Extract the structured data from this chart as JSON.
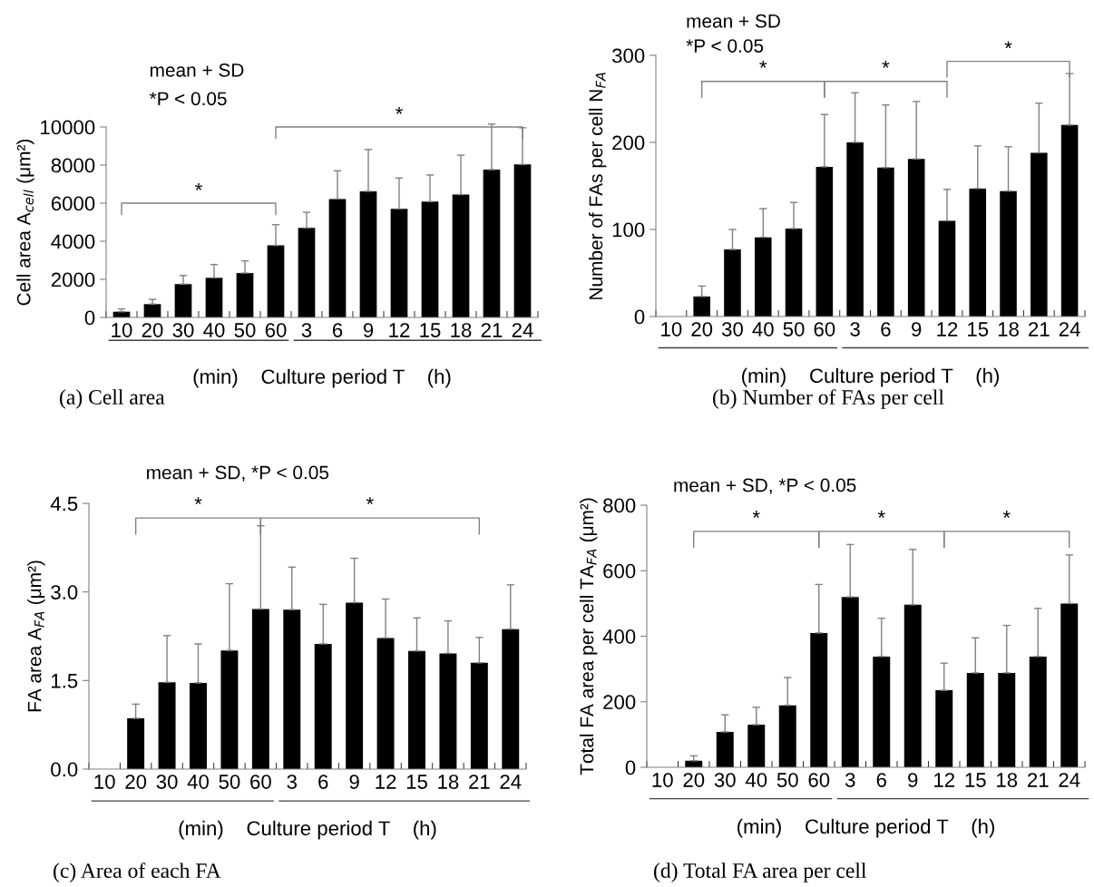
{
  "chart_data": [
    {
      "type": "bar",
      "title": "(a) Cell area",
      "xlabel": "(min)    Culture period T    (h)",
      "ylabel": "Cell area A$_{cell}$ (μm²)",
      "color": "#000000",
      "categories": [
        "10",
        "20",
        "30",
        "40",
        "50",
        "60",
        "3",
        "6",
        "9",
        "12",
        "15",
        "18",
        "21",
        "24"
      ],
      "values": [
        300,
        700,
        1750,
        2080,
        2330,
        3780,
        4700,
        6220,
        6620,
        5700,
        6080,
        6450,
        7760,
        8030
      ],
      "errors": [
        [
          300,
          450
        ],
        [
          700,
          950
        ],
        [
          1750,
          2200
        ],
        [
          2080,
          2780
        ],
        [
          2330,
          2970
        ],
        [
          3780,
          4870
        ],
        [
          4700,
          5520
        ],
        [
          6220,
          7700
        ],
        [
          6620,
          8820
        ],
        [
          5700,
          7320
        ],
        [
          6080,
          7480
        ],
        [
          6450,
          8520
        ],
        [
          7760,
          10150
        ],
        [
          8030,
          9960
        ]
      ],
      "ylim": [
        0,
        10000
      ],
      "yticks": [
        0,
        2000,
        4000,
        6000,
        8000,
        10000
      ],
      "annotations": [
        "mean + SD",
        "*P < 0.05",
        "*",
        "*"
      ]
    },
    {
      "type": "bar",
      "title": "(b) Number of FAs per cell",
      "xlabel": "(min)    Culture period T    (h)",
      "ylabel": "Number of FAs per cell N$_{FA}$",
      "color": "#000000",
      "categories": [
        "10",
        "20",
        "30",
        "40",
        "50",
        "60",
        "3",
        "6",
        "9",
        "12",
        "15",
        "18",
        "21",
        "24"
      ],
      "values": [
        null,
        23,
        77,
        91,
        101,
        172,
        200,
        171,
        181,
        110,
        147,
        144,
        188,
        220
      ],
      "errors": [
        null,
        [
          23,
          35
        ],
        [
          77,
          100
        ],
        [
          91,
          124
        ],
        [
          101,
          131
        ],
        [
          172,
          232
        ],
        [
          200,
          257
        ],
        [
          171,
          243
        ],
        [
          181,
          247
        ],
        [
          110,
          146
        ],
        [
          147,
          196
        ],
        [
          144,
          195
        ],
        [
          188,
          245
        ],
        [
          220,
          279
        ]
      ],
      "ylim": [
        0,
        300
      ],
      "yticks": [
        0,
        100,
        200,
        300
      ],
      "annotations": [
        "mean + SD",
        "*P < 0.05",
        "*",
        "*",
        "*"
      ]
    },
    {
      "type": "bar",
      "title": "(c) Area of each FA",
      "xlabel": "(min)    Culture period T    (h)",
      "ylabel": "FA area A$_{FA}$ (μm²)",
      "color": "#000000",
      "categories": [
        "10",
        "20",
        "30",
        "40",
        "50",
        "60",
        "3",
        "6",
        "9",
        "12",
        "15",
        "18",
        "21",
        "24"
      ],
      "values": [
        null,
        0.86,
        1.47,
        1.46,
        2.01,
        2.71,
        2.7,
        2.12,
        2.82,
        2.22,
        2.0,
        1.96,
        1.8,
        2.37
      ],
      "errors": [
        null,
        [
          0.86,
          1.1
        ],
        [
          1.47,
          2.26
        ],
        [
          1.46,
          2.12
        ],
        [
          2.01,
          3.14
        ],
        [
          2.71,
          4.12
        ],
        [
          2.7,
          3.42
        ],
        [
          2.12,
          2.79
        ],
        [
          2.82,
          3.57
        ],
        [
          2.22,
          2.88
        ],
        [
          2.0,
          2.56
        ],
        [
          1.96,
          2.51
        ],
        [
          1.8,
          2.23
        ],
        [
          2.37,
          3.12
        ]
      ],
      "ylim": [
        0,
        4.5
      ],
      "yticks": [
        {
          "value": 0,
          "label": "0.0"
        },
        1.5,
        {
          "value": 3,
          "label": "3.0"
        },
        4.5
      ],
      "annotations": [
        "mean + SD, *P < 0.05",
        "*",
        "*"
      ]
    },
    {
      "type": "bar",
      "title": "(d) Total FA area per cell",
      "xlabel": "(min)    Culture period T    (h)",
      "ylabel": "Total FA area per cell TA$_{FA}$ (μm²)",
      "color": "#000000",
      "categories": [
        "10",
        "20",
        "30",
        "40",
        "50",
        "60",
        "3",
        "6",
        "9",
        "12",
        "15",
        "18",
        "21",
        "24"
      ],
      "values": [
        null,
        20,
        108,
        130,
        189,
        410,
        520,
        338,
        496,
        235,
        288,
        288,
        338,
        500
      ],
      "errors": [
        null,
        [
          20,
          35
        ],
        [
          108,
          160
        ],
        [
          130,
          183
        ],
        [
          189,
          274
        ],
        [
          410,
          558
        ],
        [
          520,
          680
        ],
        [
          338,
          455
        ],
        [
          496,
          665
        ],
        [
          235,
          318
        ],
        [
          288,
          395
        ],
        [
          288,
          433
        ],
        [
          338,
          485
        ],
        [
          500,
          648
        ]
      ],
      "ylim": [
        0,
        800
      ],
      "yticks": [
        0,
        200,
        400,
        600,
        800
      ],
      "annotations": [
        "mean + SD, *P < 0.05",
        "*",
        "*",
        "*"
      ]
    }
  ]
}
